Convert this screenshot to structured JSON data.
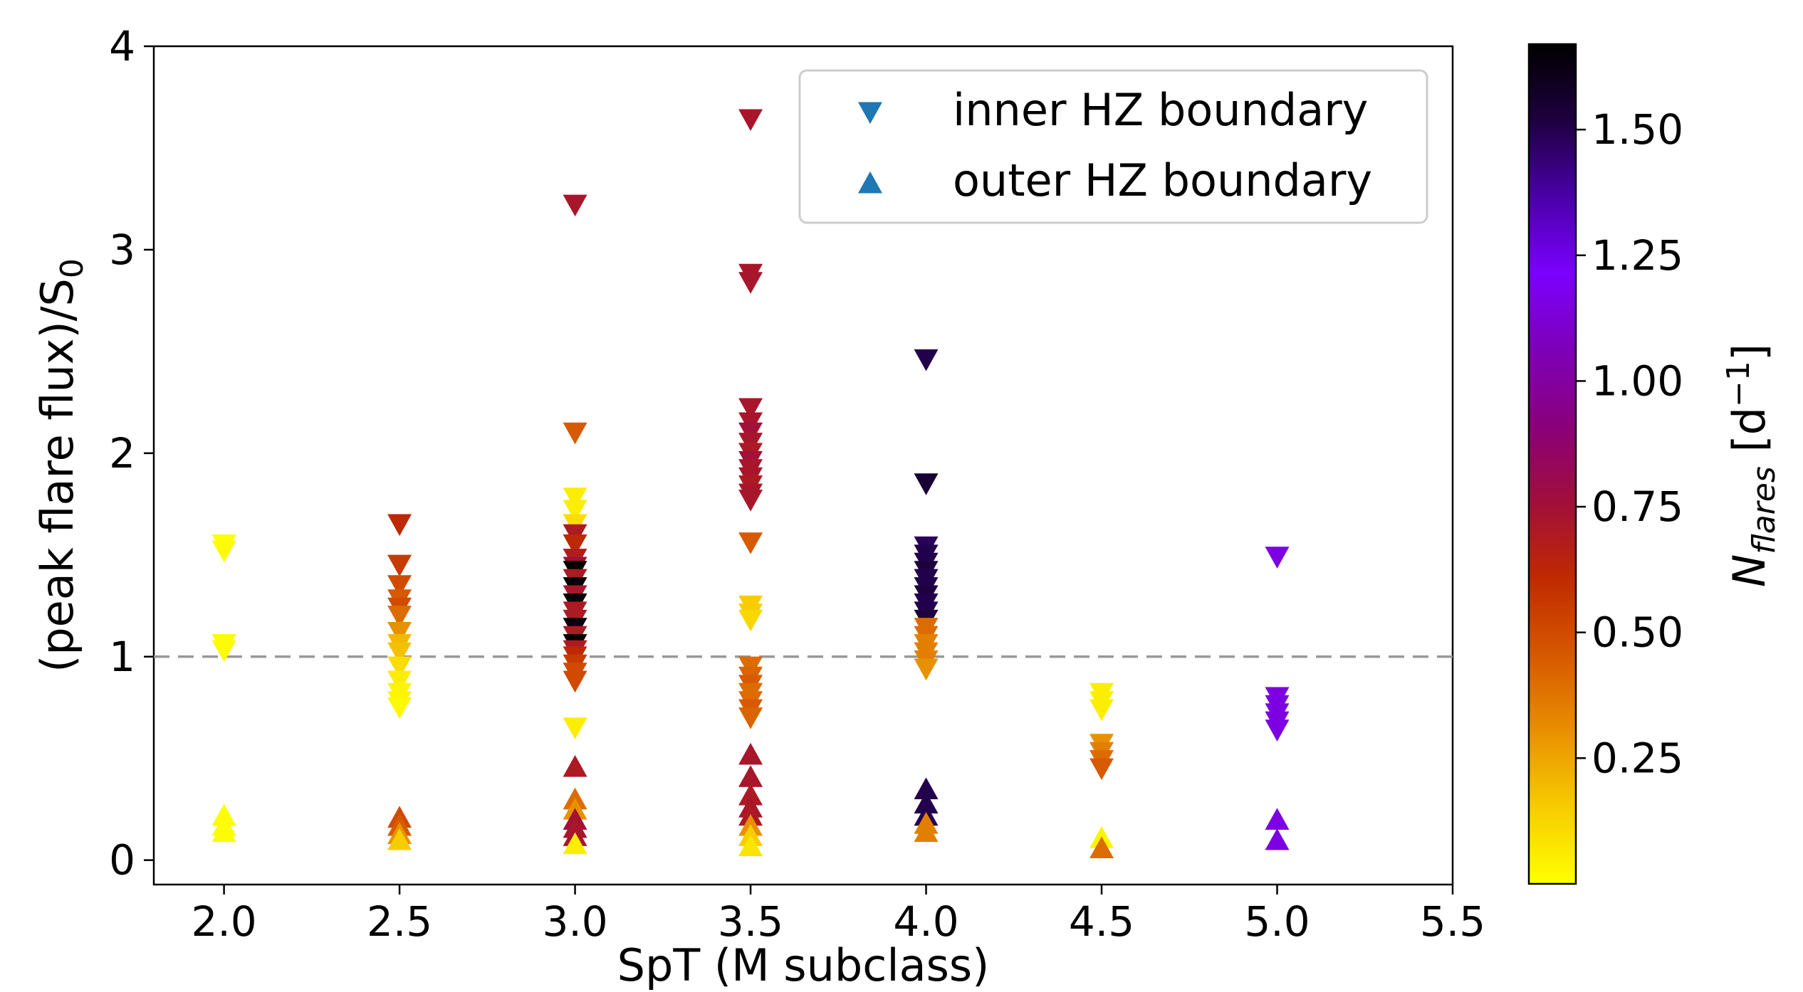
{
  "chart_data": {
    "type": "scatter",
    "xlabel": "SpT (M subclass)",
    "ylabel": "(peak flare flux)/S",
    "ylabel_subscript": "0",
    "xlim": [
      1.8,
      5.5
    ],
    "ylim": [
      -0.12,
      4.0
    ],
    "xticks": [
      2.0,
      2.5,
      3.0,
      3.5,
      4.0,
      4.5,
      5.0,
      5.5
    ],
    "xtick_labels": [
      "2.0",
      "2.5",
      "3.0",
      "3.5",
      "4.0",
      "4.5",
      "5.0",
      "5.5"
    ],
    "yticks": [
      0,
      1,
      2,
      3,
      4
    ],
    "ytick_labels": [
      "0",
      "1",
      "2",
      "3",
      "4"
    ],
    "reference_line": {
      "y": 1.0,
      "style": "dashed",
      "color": "#999999"
    },
    "legend": {
      "placement": "top-right",
      "entries": [
        {
          "label": "inner HZ boundary",
          "marker": "triangle-down",
          "color": "#1f77b4"
        },
        {
          "label": "outer HZ boundary",
          "marker": "triangle-up",
          "color": "#1f77b4"
        }
      ]
    },
    "colorbar": {
      "colormap": "gnuplot",
      "label": "N",
      "label_subscript": "flares",
      "label_unit_prefix": " [d",
      "label_unit_sup": "−1",
      "label_unit_suffix": "]",
      "range": [
        0.0,
        1.67
      ],
      "ticks": [
        0.25,
        0.5,
        0.75,
        1.0,
        1.25,
        1.5
      ],
      "tick_labels": [
        "0.25",
        "0.50",
        "0.75",
        "1.00",
        "1.25",
        "1.50"
      ],
      "stops": [
        "#ffff00",
        "#f7cc00",
        "#e89000",
        "#d65800",
        "#c02a00",
        "#a00f3a",
        "#8a007a",
        "#7d00b8",
        "#7b00ff",
        "#4a00a8",
        "#1e0040",
        "#000000"
      ]
    },
    "series": [
      {
        "name": "inner HZ boundary",
        "marker": "triangle-down",
        "points": [
          [
            2.0,
            1.55,
            0.0
          ],
          [
            2.0,
            1.52,
            0.01
          ],
          [
            2.0,
            1.06,
            0.01
          ],
          [
            2.0,
            1.03,
            0.01
          ],
          [
            2.5,
            1.65,
            0.62
          ],
          [
            2.5,
            1.45,
            0.55
          ],
          [
            2.5,
            1.35,
            0.5
          ],
          [
            2.5,
            1.28,
            0.45
          ],
          [
            2.5,
            1.24,
            0.5
          ],
          [
            2.5,
            1.2,
            0.4
          ],
          [
            2.5,
            1.12,
            0.3
          ],
          [
            2.5,
            1.06,
            0.2
          ],
          [
            2.5,
            1.02,
            0.18
          ],
          [
            2.5,
            0.95,
            0.1
          ],
          [
            2.5,
            0.88,
            0.05
          ],
          [
            2.5,
            0.82,
            0.03
          ],
          [
            2.5,
            0.78,
            0.03
          ],
          [
            2.5,
            0.75,
            0.02
          ],
          [
            3.0,
            3.22,
            0.72
          ],
          [
            3.0,
            2.1,
            0.45
          ],
          [
            3.0,
            1.78,
            0.05
          ],
          [
            3.0,
            1.72,
            0.05
          ],
          [
            3.0,
            1.65,
            0.1
          ],
          [
            3.0,
            1.6,
            0.7
          ],
          [
            3.0,
            1.55,
            0.62
          ],
          [
            3.0,
            1.48,
            0.68
          ],
          [
            3.0,
            1.44,
            0.75
          ],
          [
            3.0,
            1.42,
            1.67
          ],
          [
            3.0,
            1.38,
            0.7
          ],
          [
            3.0,
            1.34,
            1.66
          ],
          [
            3.0,
            1.3,
            0.72
          ],
          [
            3.0,
            1.26,
            1.65
          ],
          [
            3.0,
            1.22,
            0.7
          ],
          [
            3.0,
            1.18,
            0.7
          ],
          [
            3.0,
            1.14,
            1.64
          ],
          [
            3.0,
            1.1,
            0.7
          ],
          [
            3.0,
            1.06,
            1.66
          ],
          [
            3.0,
            1.03,
            0.7
          ],
          [
            3.0,
            1.0,
            0.62
          ],
          [
            3.0,
            0.96,
            0.55
          ],
          [
            3.0,
            0.92,
            0.5
          ],
          [
            3.0,
            0.88,
            0.5
          ],
          [
            3.0,
            0.65,
            0.05
          ],
          [
            3.5,
            3.64,
            0.72
          ],
          [
            3.5,
            2.88,
            0.72
          ],
          [
            3.5,
            2.84,
            0.72
          ],
          [
            3.5,
            2.22,
            0.72
          ],
          [
            3.5,
            2.15,
            0.72
          ],
          [
            3.5,
            2.1,
            0.75
          ],
          [
            3.5,
            2.05,
            0.72
          ],
          [
            3.5,
            2.0,
            0.7
          ],
          [
            3.5,
            1.96,
            0.75
          ],
          [
            3.5,
            1.92,
            0.72
          ],
          [
            3.5,
            1.88,
            0.72
          ],
          [
            3.5,
            1.84,
            0.7
          ],
          [
            3.5,
            1.8,
            0.72
          ],
          [
            3.5,
            1.77,
            0.72
          ],
          [
            3.5,
            1.56,
            0.45
          ],
          [
            3.5,
            1.25,
            0.15
          ],
          [
            3.5,
            1.21,
            0.15
          ],
          [
            3.5,
            1.18,
            0.12
          ],
          [
            3.5,
            0.95,
            0.4
          ],
          [
            3.5,
            0.9,
            0.42
          ],
          [
            3.5,
            0.86,
            0.45
          ],
          [
            3.5,
            0.82,
            0.4
          ],
          [
            3.5,
            0.78,
            0.4
          ],
          [
            3.5,
            0.74,
            0.45
          ],
          [
            3.5,
            0.7,
            0.42
          ],
          [
            4.0,
            2.46,
            1.5
          ],
          [
            4.0,
            1.85,
            1.55
          ],
          [
            4.0,
            1.54,
            1.48
          ],
          [
            4.0,
            1.5,
            1.5
          ],
          [
            4.0,
            1.46,
            1.5
          ],
          [
            4.0,
            1.42,
            1.52
          ],
          [
            4.0,
            1.38,
            1.5
          ],
          [
            4.0,
            1.34,
            1.5
          ],
          [
            4.0,
            1.3,
            1.52
          ],
          [
            4.0,
            1.26,
            1.5
          ],
          [
            4.0,
            1.22,
            1.5
          ],
          [
            4.0,
            1.18,
            1.52
          ],
          [
            4.0,
            1.14,
            0.4
          ],
          [
            4.0,
            1.1,
            0.4
          ],
          [
            4.0,
            1.06,
            0.35
          ],
          [
            4.0,
            1.02,
            0.35
          ],
          [
            4.0,
            0.98,
            0.35
          ],
          [
            4.0,
            0.94,
            0.3
          ],
          [
            4.5,
            0.82,
            0.05
          ],
          [
            4.5,
            0.78,
            0.05
          ],
          [
            4.5,
            0.74,
            0.05
          ],
          [
            4.5,
            0.57,
            0.3
          ],
          [
            4.5,
            0.53,
            0.35
          ],
          [
            4.5,
            0.49,
            0.4
          ],
          [
            4.5,
            0.45,
            0.45
          ],
          [
            5.0,
            1.49,
            1.15
          ],
          [
            5.0,
            0.8,
            1.15
          ],
          [
            5.0,
            0.76,
            1.15
          ],
          [
            5.0,
            0.72,
            1.15
          ],
          [
            5.0,
            0.68,
            1.15
          ],
          [
            5.0,
            0.64,
            1.15
          ]
        ]
      },
      {
        "name": "outer HZ boundary",
        "marker": "triangle-up",
        "points": [
          [
            2.0,
            0.22,
            0.01
          ],
          [
            2.0,
            0.17,
            0.01
          ],
          [
            2.0,
            0.14,
            0.01
          ],
          [
            2.5,
            0.21,
            0.5
          ],
          [
            2.5,
            0.17,
            0.45
          ],
          [
            2.5,
            0.13,
            0.3
          ],
          [
            2.5,
            0.1,
            0.15
          ],
          [
            3.0,
            0.46,
            0.7
          ],
          [
            3.0,
            0.3,
            0.4
          ],
          [
            3.0,
            0.25,
            0.3
          ],
          [
            3.0,
            0.2,
            0.75
          ],
          [
            3.0,
            0.16,
            0.72
          ],
          [
            3.0,
            0.12,
            0.72
          ],
          [
            3.0,
            0.08,
            0.05
          ],
          [
            3.5,
            0.52,
            0.72
          ],
          [
            3.5,
            0.41,
            0.72
          ],
          [
            3.5,
            0.32,
            0.7
          ],
          [
            3.5,
            0.26,
            0.72
          ],
          [
            3.5,
            0.22,
            0.7
          ],
          [
            3.5,
            0.17,
            0.3
          ],
          [
            3.5,
            0.12,
            0.15
          ],
          [
            3.5,
            0.07,
            0.08
          ],
          [
            4.0,
            0.35,
            1.5
          ],
          [
            4.0,
            0.28,
            1.5
          ],
          [
            4.0,
            0.22,
            1.5
          ],
          [
            4.0,
            0.18,
            0.35
          ],
          [
            4.0,
            0.14,
            0.35
          ],
          [
            4.5,
            0.11,
            0.03
          ],
          [
            4.5,
            0.06,
            0.4
          ],
          [
            5.0,
            0.2,
            1.15
          ],
          [
            5.0,
            0.1,
            1.15
          ]
        ]
      }
    ]
  }
}
